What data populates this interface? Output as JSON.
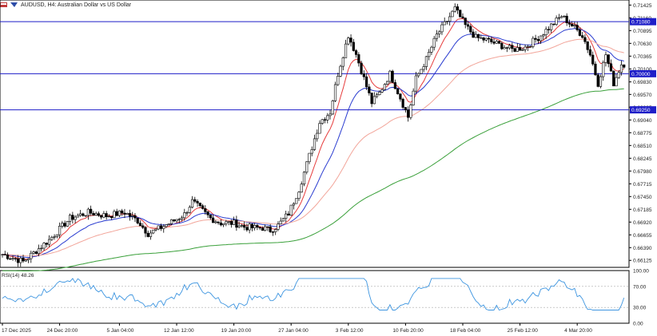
{
  "header": {
    "title": "AUDUSD, H4:  Australian Dollar vs US Dollar",
    "icons": [
      "chart-type-icon",
      "indicator-icon"
    ]
  },
  "rsi_label": "RSI(14) 48.26",
  "chart_data": [
    {
      "type": "candlestick",
      "symbol": "AUDUSD",
      "timeframe": "H4",
      "title": "AUDUSD, H4:  Australian Dollar vs US Dollar",
      "x_ticks": [
        "17 Dec 2025",
        "24 Dec 20:00",
        "5 Jan 04:00",
        "12 Jan 12:00",
        "19 Jan 20:00",
        "27 Jan 04:00",
        "3 Feb 12:00",
        "10 Feb 20:00",
        "18 Feb 04:00",
        "25 Feb 12:00",
        "4 Mar 20:00"
      ],
      "y_ticks": [
        0.71425,
        0.7116,
        0.70895,
        0.7063,
        0.70365,
        0.701,
        0.6983,
        0.6957,
        0.69305,
        0.6904,
        0.68775,
        0.6851,
        0.68245,
        0.6798,
        0.67715,
        0.6745,
        0.67185,
        0.6692,
        0.66655,
        0.6639,
        0.66125
      ],
      "ylim": [
        0.6598,
        0.7153
      ],
      "horizontal_levels": [
        {
          "value": 0.7108,
          "label": "0.71080",
          "color": "#1e1ec8"
        },
        {
          "value": 0.7,
          "label": "0.70000",
          "color": "#1e1ec8"
        },
        {
          "value": 0.6925,
          "label": "0.69250",
          "color": "#1e1ec8"
        }
      ],
      "moving_averages": [
        {
          "color": "#e63c3c",
          "role": "fast"
        },
        {
          "color": "#2a3cd0",
          "role": "medium"
        },
        {
          "color": "#f2a59a",
          "role": "slow"
        },
        {
          "color": "#3aa03a",
          "role": "long"
        }
      ],
      "price_path": [
        [
          0,
          0.6625
        ],
        [
          8,
          0.661
        ],
        [
          18,
          0.6655
        ],
        [
          26,
          0.67
        ],
        [
          33,
          0.6712
        ],
        [
          40,
          0.6705
        ],
        [
          47,
          0.6712
        ],
        [
          52,
          0.6695
        ],
        [
          56,
          0.6668
        ],
        [
          60,
          0.6678
        ],
        [
          66,
          0.6695
        ],
        [
          70,
          0.6708
        ],
        [
          73,
          0.6735
        ],
        [
          76,
          0.672
        ],
        [
          80,
          0.67
        ],
        [
          84,
          0.669
        ],
        [
          89,
          0.669
        ],
        [
          93,
          0.6682
        ],
        [
          97,
          0.668
        ],
        [
          100,
          0.668
        ],
        [
          103,
          0.6675
        ],
        [
          106,
          0.6685
        ],
        [
          110,
          0.671
        ],
        [
          114,
          0.676
        ],
        [
          118,
          0.683
        ],
        [
          122,
          0.69
        ],
        [
          126,
          0.692
        ],
        [
          129,
          0.7
        ],
        [
          133,
          0.708
        ],
        [
          136,
          0.704
        ],
        [
          139,
          0.699
        ],
        [
          142,
          0.694
        ],
        [
          145,
          0.696
        ],
        [
          149,
          0.7
        ],
        [
          153,
          0.695
        ],
        [
          156,
          0.691
        ],
        [
          159,
          0.699
        ],
        [
          163,
          0.703
        ],
        [
          167,
          0.708
        ],
        [
          171,
          0.711
        ],
        [
          174,
          0.7135
        ],
        [
          178,
          0.71
        ],
        [
          182,
          0.7075
        ],
        [
          186,
          0.707
        ],
        [
          191,
          0.706
        ],
        [
          196,
          0.705
        ],
        [
          201,
          0.7055
        ],
        [
          206,
          0.7075
        ],
        [
          211,
          0.71
        ],
        [
          215,
          0.712
        ],
        [
          219,
          0.71
        ],
        [
          223,
          0.708
        ],
        [
          226,
          0.704
        ],
        [
          229,
          0.698
        ],
        [
          232,
          0.704
        ],
        [
          235,
          0.698
        ],
        [
          238,
          0.702
        ]
      ],
      "x_index_range": [
        0,
        240
      ],
      "x_tick_index": [
        0,
        22,
        45,
        67,
        89,
        111,
        133,
        155,
        177,
        199,
        221
      ]
    },
    {
      "type": "line",
      "title": "RSI(14) 48.26",
      "rsi_value": 48.26,
      "y_ticks": [
        "100.00",
        "70.00",
        "30.00",
        "0.00"
      ],
      "ylim": [
        0,
        100
      ],
      "levels": [
        70,
        30
      ],
      "color": "#3d95e0"
    }
  ]
}
